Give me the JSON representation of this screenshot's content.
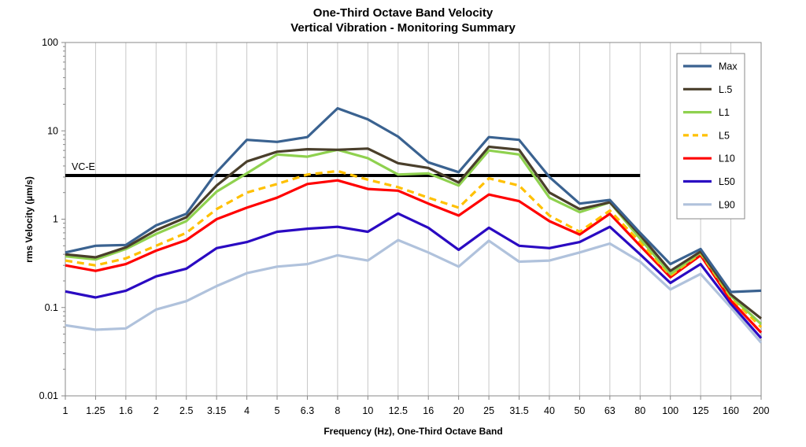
{
  "chart_data": {
    "type": "line",
    "title": "One-Third Octave Band Velocity",
    "subtitle": "Vertical Vibration - Monitoring Summary",
    "xlabel": "Frequency (Hz), One-Third Octave Band",
    "ylabel": "rms Velocity (µm/s)",
    "y_scale": "log",
    "ylim": [
      0.01,
      100
    ],
    "y_ticks": [
      "0.01",
      "0.1",
      "1",
      "10",
      "100"
    ],
    "grid": "vertical",
    "legend_position": "top-right",
    "categories": [
      "1",
      "1.25",
      "1.6",
      "2",
      "2.5",
      "3.15",
      "4",
      "5",
      "6.3",
      "8",
      "10",
      "12.5",
      "16",
      "20",
      "25",
      "31.5",
      "40",
      "50",
      "63",
      "80",
      "100",
      "125",
      "160",
      "200"
    ],
    "series": [
      {
        "name": "Max",
        "color": "#3a6290",
        "dash": "solid",
        "values": [
          0.42,
          0.5,
          0.51,
          0.85,
          1.15,
          3.4,
          7.9,
          7.5,
          8.5,
          18,
          13.5,
          8.6,
          4.4,
          3.4,
          8.5,
          7.9,
          3.0,
          1.5,
          1.65,
          0.7,
          0.31,
          0.46,
          0.15,
          0.155
        ]
      },
      {
        "name": "L.5",
        "color": "#4a3f2b",
        "dash": "solid",
        "values": [
          0.4,
          0.37,
          0.48,
          0.75,
          1.05,
          2.4,
          4.5,
          5.8,
          6.2,
          6.1,
          6.3,
          4.3,
          3.8,
          2.6,
          6.6,
          6.1,
          2.0,
          1.3,
          1.55,
          0.66,
          0.26,
          0.43,
          0.14,
          0.075
        ]
      },
      {
        "name": "L1",
        "color": "#8fd14f",
        "dash": "solid",
        "values": [
          0.38,
          0.35,
          0.46,
          0.68,
          0.95,
          2.05,
          3.3,
          5.4,
          5.1,
          6.1,
          4.9,
          3.2,
          3.3,
          2.4,
          6.0,
          5.4,
          1.75,
          1.2,
          1.55,
          0.6,
          0.24,
          0.42,
          0.135,
          0.065
        ]
      },
      {
        "name": "L5",
        "color": "#ffc000",
        "dash": "dashed",
        "values": [
          0.34,
          0.3,
          0.36,
          0.5,
          0.7,
          1.3,
          2.0,
          2.5,
          3.2,
          3.5,
          2.8,
          2.3,
          1.75,
          1.35,
          2.9,
          2.4,
          1.1,
          0.72,
          1.25,
          0.55,
          0.23,
          0.41,
          0.13,
          0.06
        ]
      },
      {
        "name": "L10",
        "color": "#ff0000",
        "dash": "solid",
        "values": [
          0.3,
          0.26,
          0.31,
          0.44,
          0.58,
          1.0,
          1.35,
          1.75,
          2.5,
          2.75,
          2.2,
          2.1,
          1.5,
          1.1,
          1.9,
          1.6,
          0.95,
          0.67,
          1.15,
          0.5,
          0.22,
          0.39,
          0.12,
          0.052
        ]
      },
      {
        "name": "L50",
        "color": "#2a0ac2",
        "dash": "solid",
        "values": [
          0.152,
          0.13,
          0.155,
          0.225,
          0.275,
          0.47,
          0.55,
          0.72,
          0.78,
          0.82,
          0.72,
          1.16,
          0.8,
          0.45,
          0.8,
          0.5,
          0.47,
          0.55,
          0.82,
          0.4,
          0.19,
          0.31,
          0.11,
          0.045
        ]
      },
      {
        "name": "L90",
        "color": "#b0c2dc",
        "dash": "solid",
        "values": [
          0.063,
          0.056,
          0.058,
          0.095,
          0.118,
          0.175,
          0.245,
          0.29,
          0.31,
          0.39,
          0.34,
          0.58,
          0.42,
          0.29,
          0.57,
          0.33,
          0.34,
          0.42,
          0.53,
          0.33,
          0.16,
          0.24,
          0.1,
          0.04
        ]
      }
    ],
    "reference_line": {
      "label": "VC-E",
      "value": 3.125,
      "x_start": "1",
      "x_end": "80",
      "color": "#000000"
    }
  }
}
